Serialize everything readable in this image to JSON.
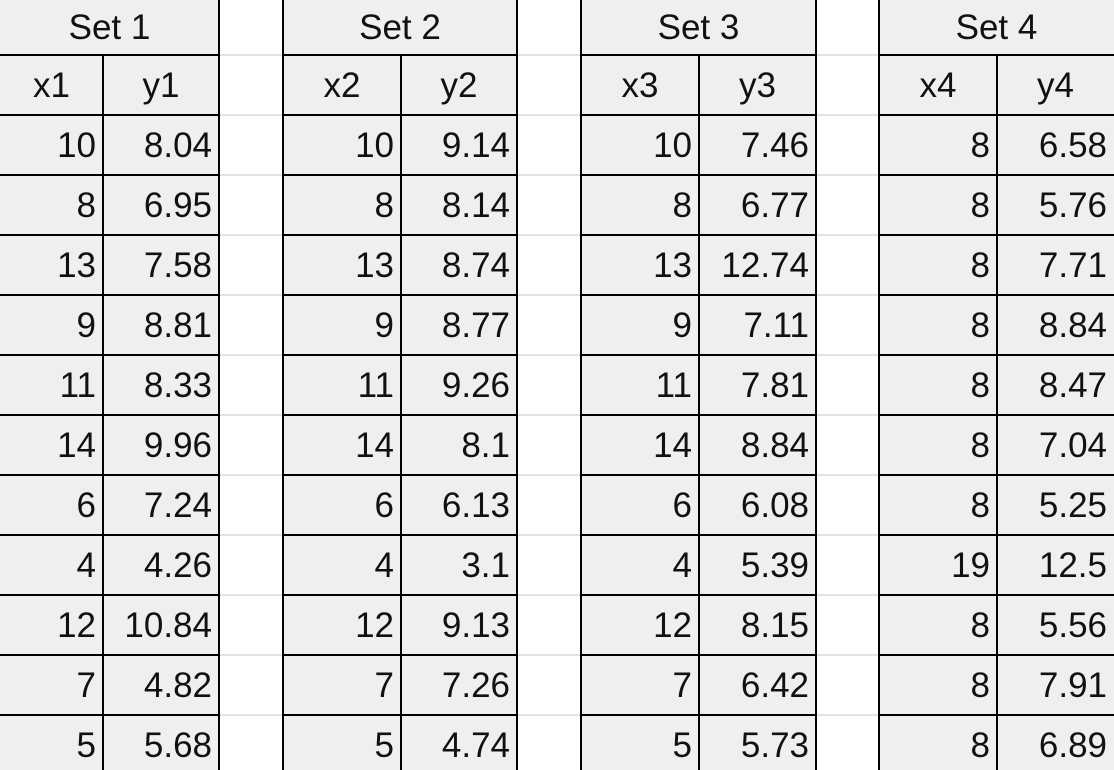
{
  "sets": [
    {
      "title": "Set 1",
      "x_header": "x1",
      "y_header": "y1",
      "rows": [
        {
          "x": "10",
          "y": "8.04"
        },
        {
          "x": "8",
          "y": "6.95"
        },
        {
          "x": "13",
          "y": "7.58"
        },
        {
          "x": "9",
          "y": "8.81"
        },
        {
          "x": "11",
          "y": "8.33"
        },
        {
          "x": "14",
          "y": "9.96"
        },
        {
          "x": "6",
          "y": "7.24"
        },
        {
          "x": "4",
          "y": "4.26"
        },
        {
          "x": "12",
          "y": "10.84"
        },
        {
          "x": "7",
          "y": "4.82"
        },
        {
          "x": "5",
          "y": "5.68"
        }
      ]
    },
    {
      "title": "Set 2",
      "x_header": "x2",
      "y_header": "y2",
      "rows": [
        {
          "x": "10",
          "y": "9.14"
        },
        {
          "x": "8",
          "y": "8.14"
        },
        {
          "x": "13",
          "y": "8.74"
        },
        {
          "x": "9",
          "y": "8.77"
        },
        {
          "x": "11",
          "y": "9.26"
        },
        {
          "x": "14",
          "y": "8.1"
        },
        {
          "x": "6",
          "y": "6.13"
        },
        {
          "x": "4",
          "y": "3.1"
        },
        {
          "x": "12",
          "y": "9.13"
        },
        {
          "x": "7",
          "y": "7.26"
        },
        {
          "x": "5",
          "y": "4.74"
        }
      ]
    },
    {
      "title": "Set 3",
      "x_header": "x3",
      "y_header": "y3",
      "rows": [
        {
          "x": "10",
          "y": "7.46"
        },
        {
          "x": "8",
          "y": "6.77"
        },
        {
          "x": "13",
          "y": "12.74"
        },
        {
          "x": "9",
          "y": "7.11"
        },
        {
          "x": "11",
          "y": "7.81"
        },
        {
          "x": "14",
          "y": "8.84"
        },
        {
          "x": "6",
          "y": "6.08"
        },
        {
          "x": "4",
          "y": "5.39"
        },
        {
          "x": "12",
          "y": "8.15"
        },
        {
          "x": "7",
          "y": "6.42"
        },
        {
          "x": "5",
          "y": "5.73"
        }
      ]
    },
    {
      "title": "Set 4",
      "x_header": "x4",
      "y_header": "y4",
      "rows": [
        {
          "x": "8",
          "y": "6.58"
        },
        {
          "x": "8",
          "y": "5.76"
        },
        {
          "x": "8",
          "y": "7.71"
        },
        {
          "x": "8",
          "y": "8.84"
        },
        {
          "x": "8",
          "y": "8.47"
        },
        {
          "x": "8",
          "y": "7.04"
        },
        {
          "x": "8",
          "y": "5.25"
        },
        {
          "x": "19",
          "y": "12.5"
        },
        {
          "x": "8",
          "y": "5.56"
        },
        {
          "x": "8",
          "y": "7.91"
        },
        {
          "x": "8",
          "y": "6.89"
        }
      ]
    }
  ],
  "colors": {
    "cell_background": "#efefef",
    "border": "#000000",
    "text": "#111111",
    "gap_gridline": "#e3e3e3"
  }
}
